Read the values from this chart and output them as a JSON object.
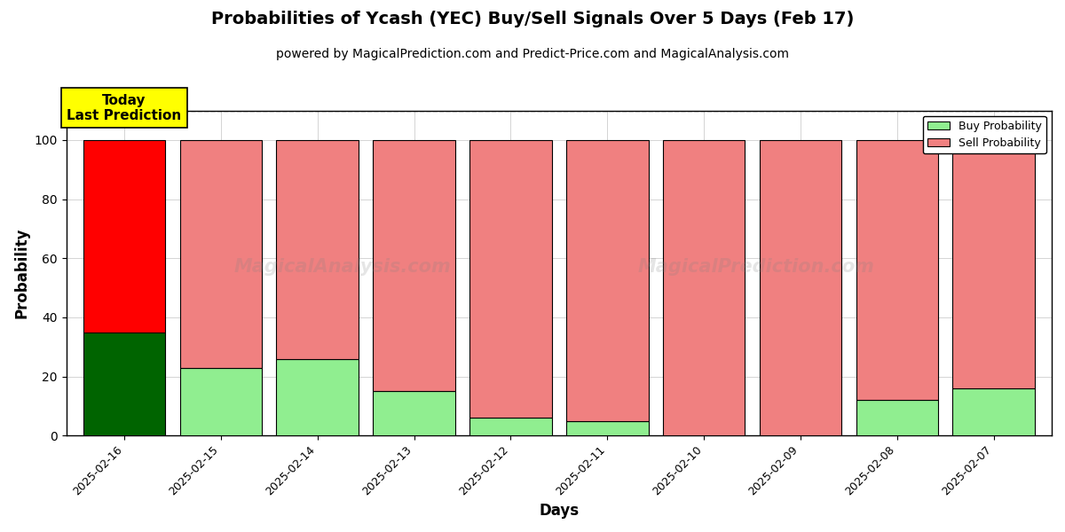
{
  "title": "Probabilities of Ycash (YEC) Buy/Sell Signals Over 5 Days (Feb 17)",
  "subtitle": "powered by MagicalPrediction.com and Predict-Price.com and MagicalAnalysis.com",
  "xlabel": "Days",
  "ylabel": "Probability",
  "dates": [
    "2025-02-16",
    "2025-02-15",
    "2025-02-14",
    "2025-02-13",
    "2025-02-12",
    "2025-02-11",
    "2025-02-10",
    "2025-02-09",
    "2025-02-08",
    "2025-02-07"
  ],
  "buy_values": [
    35,
    23,
    26,
    15,
    6,
    5,
    0,
    0,
    12,
    16
  ],
  "sell_values": [
    65,
    77,
    74,
    85,
    94,
    95,
    100,
    100,
    88,
    84
  ],
  "today_buy_color": "#006400",
  "today_sell_color": "#FF0000",
  "buy_color": "#90EE90",
  "sell_color": "#F08080",
  "today_label_bg": "#FFFF00",
  "today_label_text": "Today\nLast Prediction",
  "legend_buy_label": "Buy Probability",
  "legend_sell_label": "Sell Probability",
  "ylim": [
    0,
    110
  ],
  "dashed_line_y": 110,
  "watermark1_text": "MagicalAnalysis.com",
  "watermark2_text": "MagicalPrediction.com",
  "background_color": "#FFFFFF",
  "bar_edge_color": "#000000",
  "bar_width": 0.85,
  "grid_color": "#AAAAAA",
  "title_fontsize": 14,
  "subtitle_fontsize": 10,
  "axis_label_fontsize": 12,
  "tick_fontsize": 9
}
